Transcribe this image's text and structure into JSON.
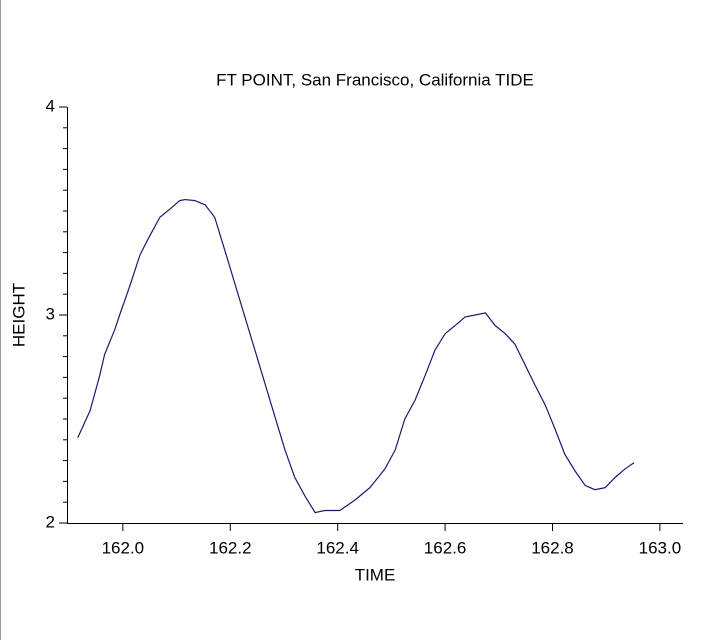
{
  "chart_data": {
    "type": "line",
    "title": "FT POINT, San Francisco, California TIDE",
    "xlabel": "TIME",
    "ylabel": "HEIGHT",
    "xlim": [
      161.896,
      163.043
    ],
    "ylim": [
      2,
      4
    ],
    "xticks": [
      {
        "value": 162.0,
        "label": "162.0"
      },
      {
        "value": 162.2,
        "label": "162.2"
      },
      {
        "value": 162.4,
        "label": "162.4"
      },
      {
        "value": 162.6,
        "label": "162.6"
      },
      {
        "value": 162.8,
        "label": "162.8"
      },
      {
        "value": 163.0,
        "label": "163.0"
      }
    ],
    "yticks": [
      2,
      3,
      4
    ],
    "yminor_ticks": [
      2.1,
      2.2,
      2.3,
      2.4,
      2.5,
      2.6,
      2.7,
      2.8,
      2.9,
      3.1,
      3.2,
      3.3,
      3.4,
      3.5,
      3.6,
      3.7,
      3.8,
      3.9
    ],
    "series": [
      {
        "name": "TIDE",
        "color": "#1a1a6e",
        "x": [
          161.916,
          161.939,
          161.957,
          161.966,
          161.985,
          161.994,
          162.013,
          162.032,
          162.05,
          162.069,
          162.088,
          162.106,
          162.116,
          162.134,
          162.153,
          162.171,
          162.19,
          162.218,
          162.246,
          162.274,
          162.302,
          162.32,
          162.339,
          162.358,
          162.376,
          162.404,
          162.432,
          162.46,
          162.488,
          162.507,
          162.525,
          162.544,
          162.563,
          162.581,
          162.6,
          162.619,
          162.637,
          162.656,
          162.675,
          162.693,
          162.712,
          162.73,
          162.749,
          162.768,
          162.786,
          162.805,
          162.823,
          162.842,
          162.861,
          162.879,
          162.898,
          162.917,
          162.935,
          162.952
        ],
        "values": [
          2.41,
          2.54,
          2.71,
          2.81,
          2.93,
          3.0,
          3.14,
          3.29,
          3.38,
          3.47,
          3.51,
          3.55,
          3.555,
          3.55,
          3.53,
          3.47,
          3.31,
          3.07,
          2.83,
          2.59,
          2.35,
          2.22,
          2.13,
          2.05,
          2.06,
          2.06,
          2.11,
          2.17,
          2.26,
          2.35,
          2.5,
          2.59,
          2.71,
          2.83,
          2.91,
          2.95,
          2.99,
          3.0,
          3.01,
          2.95,
          2.91,
          2.86,
          2.76,
          2.66,
          2.57,
          2.45,
          2.33,
          2.25,
          2.18,
          2.16,
          2.17,
          2.22,
          2.26,
          2.29
        ]
      }
    ]
  }
}
